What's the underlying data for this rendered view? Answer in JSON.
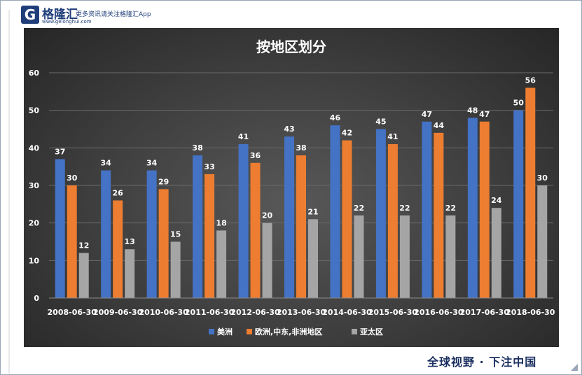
{
  "header": {
    "logo_glyph": "G",
    "logo_name": "格隆汇",
    "logo_domain": "www.gelonghui.com",
    "slogan": "更多资讯请关注格隆汇App"
  },
  "footer": {
    "slogan": "全球视野 · 下注中国"
  },
  "colors": {
    "americas": "#4472c4",
    "emea": "#ed7d31",
    "apac": "#a5a5a5",
    "text": "#ffffff",
    "grid": "#6b6b6b"
  },
  "chart_data": {
    "type": "bar",
    "title": "按地区划分",
    "xlabel": "",
    "ylabel": "",
    "ylim": [
      0,
      60
    ],
    "yticks": [
      0,
      10,
      20,
      30,
      40,
      50,
      60
    ],
    "grid": true,
    "legend_position": "bottom",
    "categories": [
      "2008-06-30",
      "2009-06-30",
      "2010-06-30",
      "2011-06-30",
      "2012-06-30",
      "2013-06-30",
      "2014-06-30",
      "2015-06-30",
      "2016-06-30",
      "2017-06-30",
      "2018-06-30"
    ],
    "series": [
      {
        "name": "美洲",
        "color": "#4472c4",
        "values": [
          37,
          34,
          34,
          38,
          41,
          43,
          46,
          45,
          47,
          48,
          50
        ]
      },
      {
        "name": "欧洲,中东,非洲地区",
        "color": "#ed7d31",
        "values": [
          30,
          26,
          29,
          33,
          36,
          38,
          42,
          41,
          44,
          47,
          56
        ]
      },
      {
        "name": "亚太区",
        "color": "#a5a5a5",
        "values": [
          12,
          13,
          15,
          18,
          20,
          21,
          22,
          22,
          22,
          24,
          30
        ]
      }
    ]
  }
}
